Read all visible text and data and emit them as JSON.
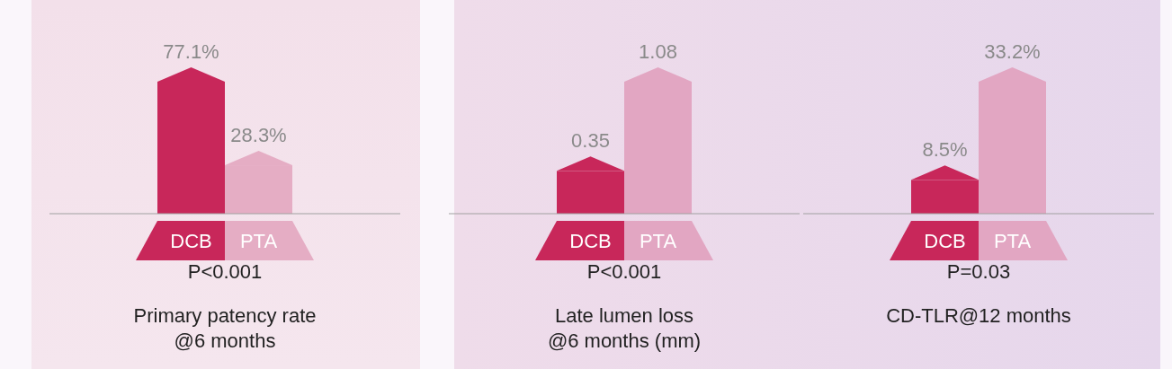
{
  "chart_data": [
    {
      "type": "bar",
      "title": "Primary patency rate\n@6 months",
      "categories": [
        "DCB",
        "PTA"
      ],
      "values": [
        77.1,
        28.3
      ],
      "colors": [
        "#c8275a",
        "#e5adc4"
      ],
      "value_labels": [
        "77.1%",
        "28.3%"
      ],
      "annotations": [
        "P<0.001"
      ],
      "legend": false
    },
    {
      "type": "bar",
      "title": "Late lumen loss\n@6 months (mm)",
      "categories": [
        "DCB",
        "PTA"
      ],
      "values": [
        0.35,
        1.08
      ],
      "colors": [
        "#c8275a",
        "#e2a6c2"
      ],
      "data_labels": true,
      "annotations": [
        "P<0.001"
      ],
      "legend": false
    },
    {
      "type": "bar",
      "title": "CD-TLR@12 months",
      "categories": [
        "DCB",
        "PTA"
      ],
      "values": [
        8.5,
        33.2
      ],
      "colors": [
        "#c8275a",
        "#e2a6c2"
      ],
      "value_labels": [
        "8.5%",
        "33.2%"
      ],
      "annotations": [
        "P=0.03"
      ],
      "legend": false
    }
  ]
}
